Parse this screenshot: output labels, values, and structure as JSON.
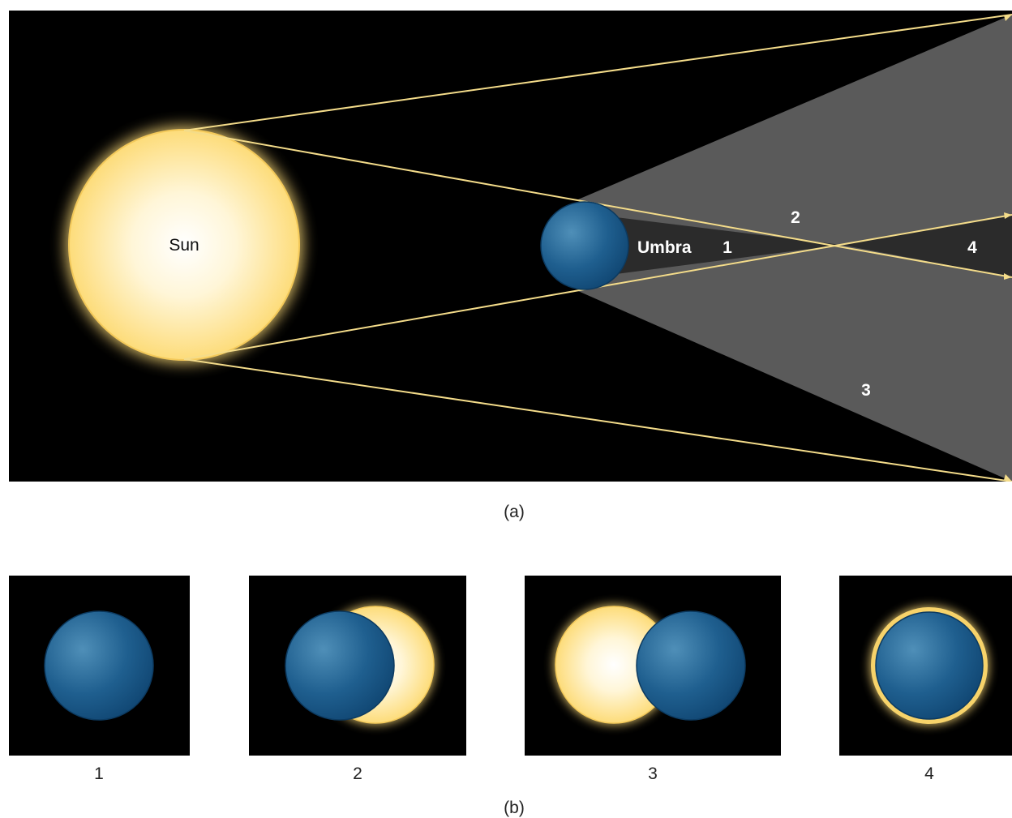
{
  "panel_a": {
    "caption": "(a)",
    "sun_label": "Sun",
    "umbra_label": "Umbra",
    "region_labels": [
      "1",
      "2",
      "3",
      "4"
    ]
  },
  "panel_b": {
    "caption": "(b)",
    "views": [
      {
        "label": "1"
      },
      {
        "label": "2"
      },
      {
        "label": "3"
      },
      {
        "label": "4"
      }
    ]
  },
  "colors": {
    "space": "#000000",
    "shadow": "#5a5a5a",
    "umbra": "#2b2b2b",
    "sun_core": "#ffffff",
    "sun_edge": "#fddc7a",
    "ray": "#f4dc8a",
    "earth_light": "#4f8fb8",
    "earth_dark": "#0f4470"
  }
}
